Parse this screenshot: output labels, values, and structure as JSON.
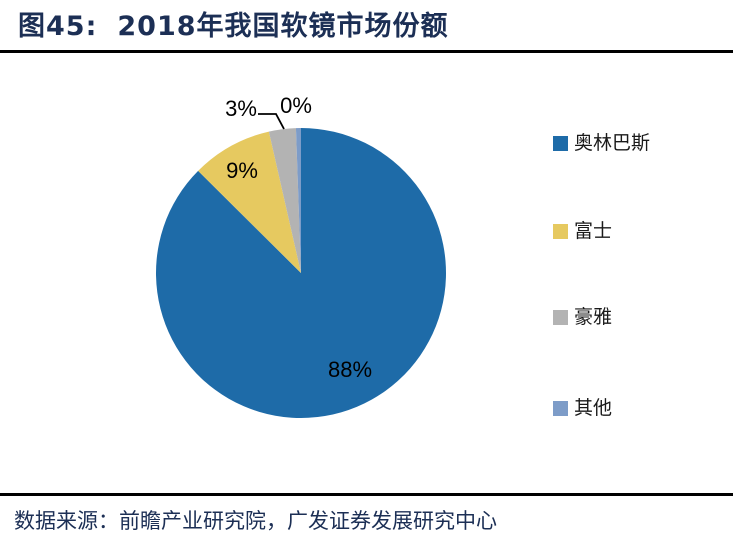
{
  "figure": {
    "label": "图45:",
    "title": "2018年我国软镜市场份额"
  },
  "footer": {
    "source": "数据来源：前瞻产业研究院，广发证券发展研究中心"
  },
  "chart_data": {
    "type": "pie",
    "title": "2018年我国软镜市场份额",
    "categories": [
      "奥林巴斯",
      "富士",
      "豪雅",
      "其他"
    ],
    "values": [
      88,
      9,
      3,
      0
    ],
    "data_labels": [
      "88%",
      "9%",
      "3%",
      "0%"
    ],
    "colors": [
      "#1e6ba8",
      "#e6c960",
      "#b3b3b3",
      "#7d9cc8"
    ],
    "legend_position": "right",
    "start_angle_deg": 0,
    "direction": "clockwise",
    "label_color": "#000000"
  }
}
